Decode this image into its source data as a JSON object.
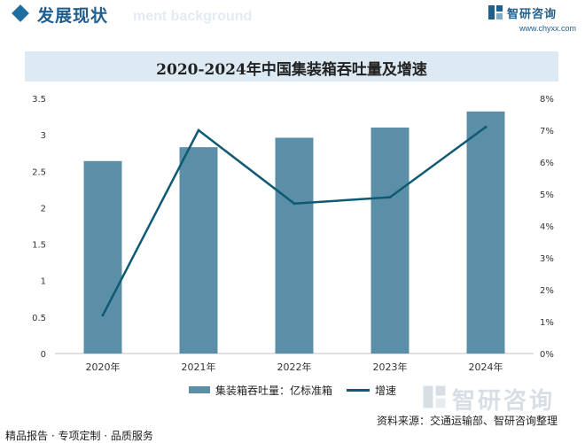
{
  "header": {
    "section_title": "发展现状",
    "ghost_text": "ment background",
    "brand_name": "智研咨询",
    "brand_url": "www.chyxx.com"
  },
  "watermark": {
    "text": "智研咨询"
  },
  "footer": {
    "left": "精品报告 · 专项定制 · 品质服务",
    "source": "资料来源：交通运输部、智研咨询整理"
  },
  "colors": {
    "bar": "#5b8fa8",
    "line": "#0f5a73",
    "title_bg": "#ddeaf3",
    "brand": "#1f5f8f"
  },
  "chart_data": {
    "type": "bar",
    "title": "2020-2024年中国集装箱吞吐量及增速",
    "categories": [
      "2020年",
      "2021年",
      "2022年",
      "2023年",
      "2024年"
    ],
    "series": [
      {
        "name": "集装箱吞吐量：亿标准箱",
        "type": "bar",
        "axis": "left",
        "values": [
          2.64,
          2.83,
          2.96,
          3.1,
          3.32
        ]
      },
      {
        "name": "增速",
        "type": "line",
        "axis": "right",
        "values": [
          1.2,
          7.0,
          4.7,
          4.9,
          7.1
        ]
      }
    ],
    "y_left": {
      "ylim": [
        0,
        3.5
      ],
      "ticks": [
        "0",
        "0.5",
        "1",
        "1.5",
        "2",
        "2.5",
        "3",
        "3.5"
      ]
    },
    "y_right": {
      "ylim": [
        0,
        8
      ],
      "ticks": [
        "0%",
        "1%",
        "2%",
        "3%",
        "4%",
        "5%",
        "6%",
        "7%",
        "8%"
      ]
    },
    "grid": false,
    "legend_position": "bottom"
  }
}
